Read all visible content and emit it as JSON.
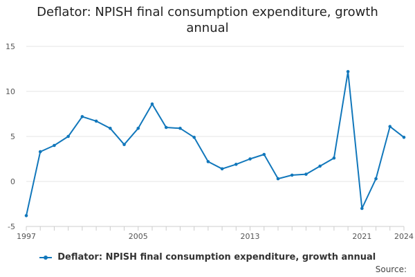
{
  "chart_data": {
    "type": "line",
    "title": "Deflator: NPISH final consumption expenditure, growth annual",
    "xlabel": "",
    "ylabel": "",
    "xlim": [
      1997,
      2024
    ],
    "ylim": [
      -5,
      15
    ],
    "yticks": [
      -5,
      0,
      5,
      10,
      15
    ],
    "xtick_labels": [
      1997,
      2005,
      2013,
      2021,
      2024
    ],
    "grid": true,
    "legend_position": "bottom",
    "series": [
      {
        "name": "Deflator: NPISH final consumption expenditure, growth annual",
        "color": "#1177bb",
        "x": [
          1997,
          1998,
          1999,
          2000,
          2001,
          2002,
          2003,
          2004,
          2005,
          2006,
          2007,
          2008,
          2009,
          2010,
          2011,
          2012,
          2013,
          2014,
          2015,
          2016,
          2017,
          2018,
          2019,
          2020,
          2021,
          2022,
          2023,
          2024
        ],
        "values": [
          -3.8,
          3.3,
          4.0,
          5.0,
          7.2,
          6.7,
          5.9,
          4.1,
          5.9,
          8.6,
          6.0,
          5.9,
          4.9,
          2.2,
          1.4,
          1.9,
          2.5,
          3.0,
          0.3,
          0.7,
          0.8,
          1.7,
          2.6,
          12.2,
          -3.0,
          0.3,
          6.1,
          4.9
        ]
      }
    ]
  },
  "legend": {
    "label": "Deflator: NPISH final consumption expenditure, growth annual"
  },
  "source": {
    "label": "Source:"
  }
}
